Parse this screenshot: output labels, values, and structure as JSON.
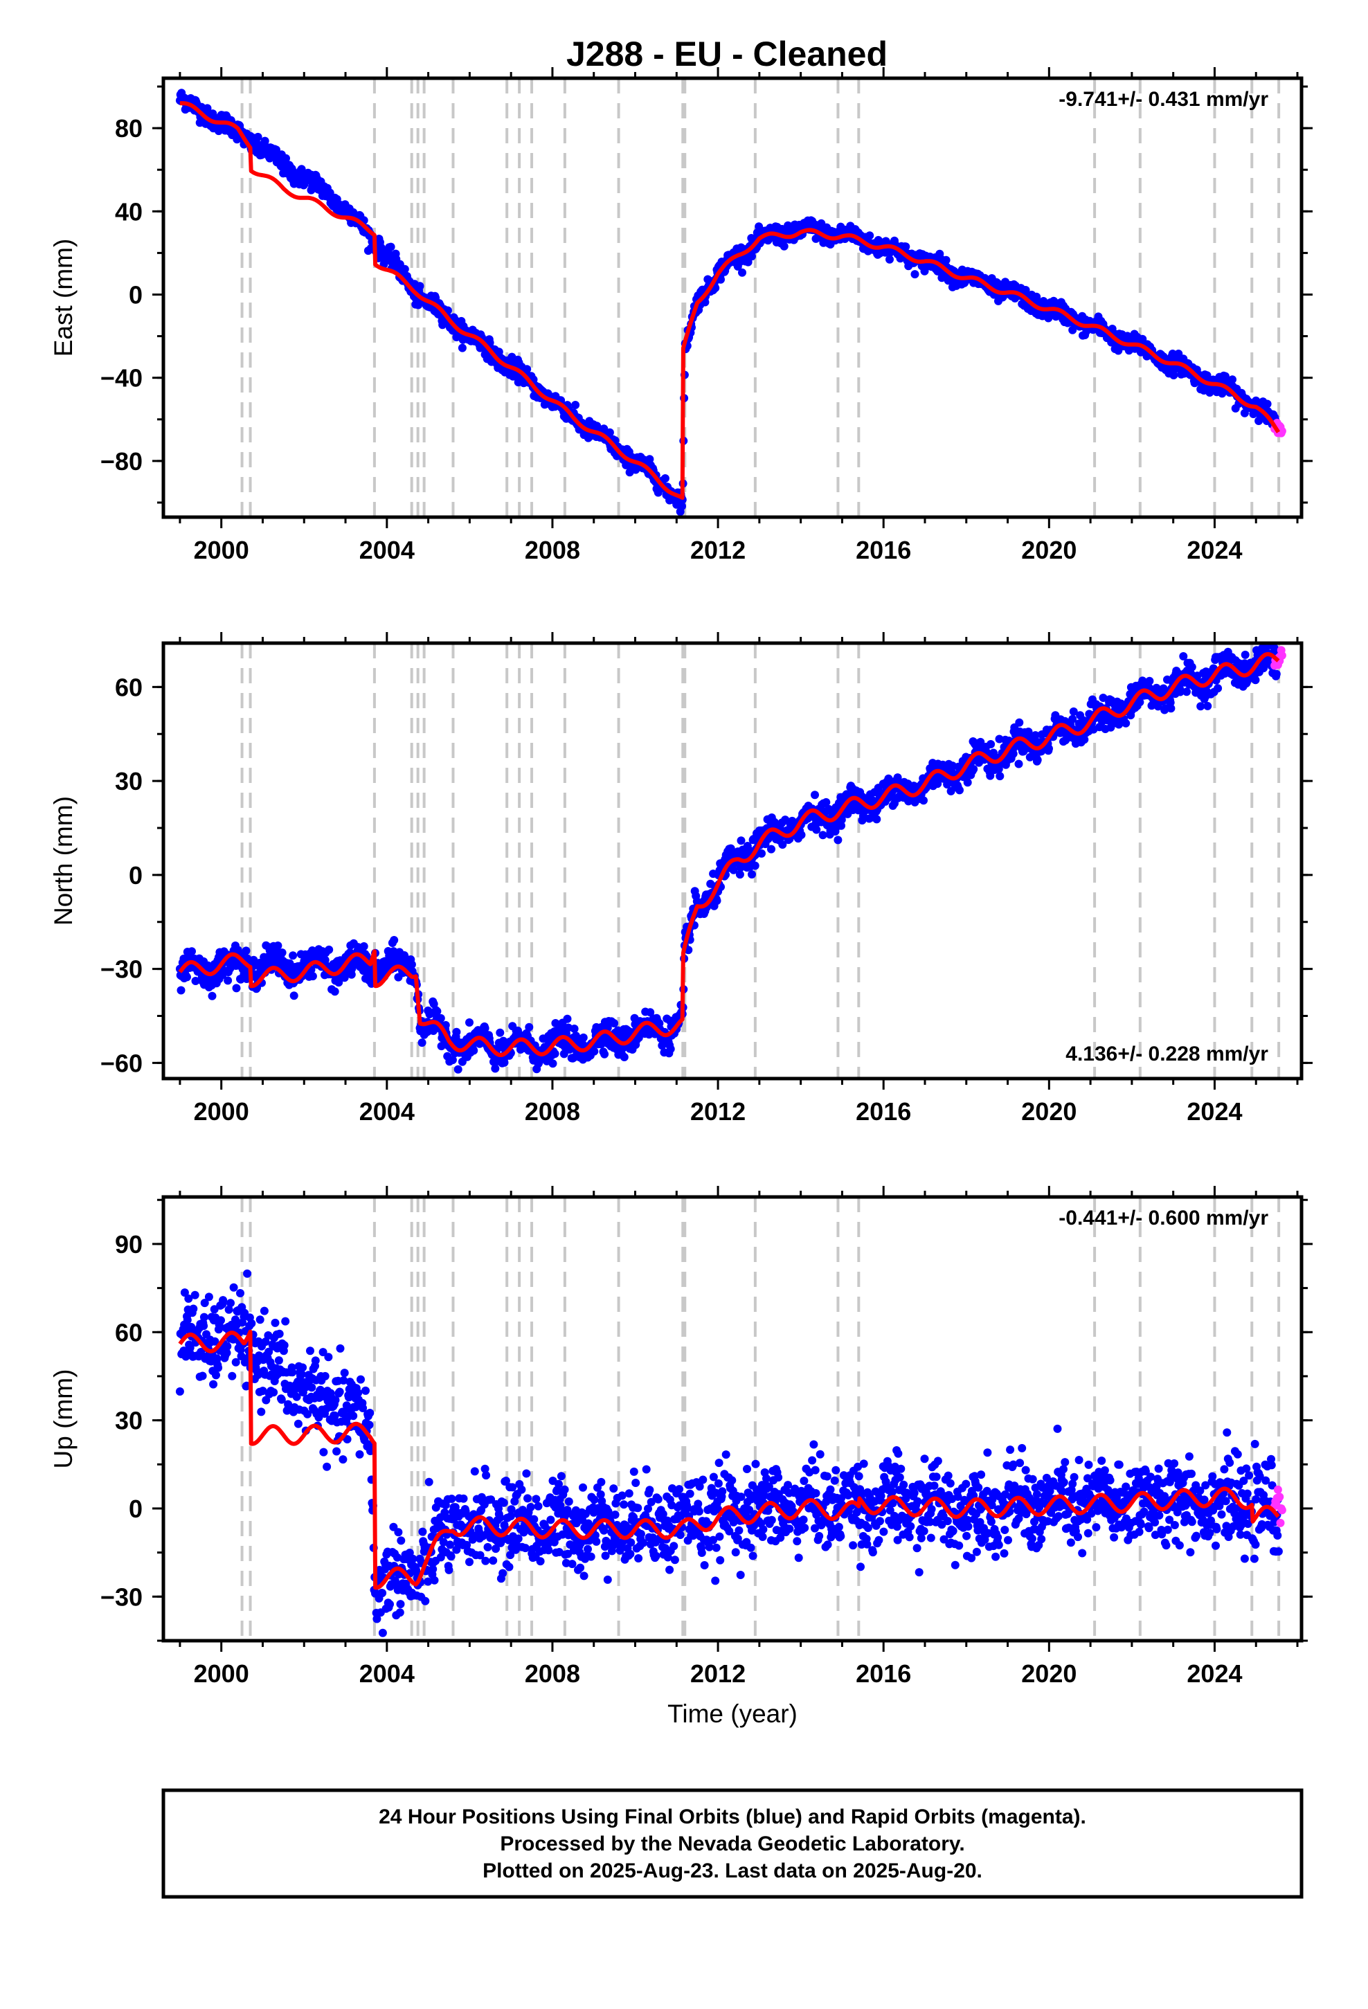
{
  "title": "J288  - EU - Cleaned",
  "footer": {
    "line1": "24 Hour Positions Using Final Orbits (blue) and Rapid Orbits (magenta).",
    "line2": "Processed by the Nevada Geodetic Laboratory.",
    "line3": "Plotted on 2025-Aug-23. Last data on 2025-Aug-20."
  },
  "colors": {
    "final_orbits": "#0000ff",
    "rapid_orbits": "#ff33ff",
    "model": "#ff0000",
    "event_lines": "#c8c8c8"
  },
  "chart_data": [
    {
      "type": "scatter",
      "ylabel": "East (mm)",
      "xlabel": "",
      "xlim": [
        1998.6,
        2026.1
      ],
      "ylim": [
        -107,
        104
      ],
      "xticks": [
        "2000",
        "2004",
        "2008",
        "2012",
        "2016",
        "2020",
        "2024"
      ],
      "yticks": [
        "-80",
        "-40",
        "0",
        "40",
        "80"
      ],
      "rate_text": "-9.741+/- 0.431 mm/yr",
      "rate_position": "top-right",
      "events": [
        2000.5,
        2000.7,
        2003.7,
        2004.6,
        2004.75,
        2004.9,
        2005.6,
        2006.9,
        2007.2,
        2007.5,
        2008.3,
        2009.6,
        2011.15,
        2011.2,
        2012.9,
        2014.9,
        2015.4,
        2021.1,
        2022.2,
        2024.0,
        2024.9,
        2025.55
      ],
      "series": [
        {
          "name": "Final Orbits",
          "color": "#0000ff",
          "noise": 2.2,
          "seasonal": 1.5,
          "x": [
            1999.0,
            1999.5,
            2000.0,
            2000.7,
            2001.5,
            2002.5,
            2003.0,
            2003.7,
            2004.7,
            2005.5,
            2006.5,
            2007.5,
            2008.5,
            2009.5,
            2010.5,
            2011.15,
            2011.2,
            2011.5,
            2012.0,
            2012.5,
            2013.0,
            2014.0,
            2015.0,
            2016.0,
            2017.0,
            2018.0,
            2019.0,
            2020.0,
            2021.0,
            2022.0,
            2023.0,
            2024.0,
            2025.0,
            2025.5
          ],
          "y": [
            94,
            88,
            83,
            74,
            62,
            50,
            41,
            26,
            1,
            -12,
            -27,
            -43,
            -59,
            -73,
            -88,
            -100,
            -28,
            -3,
            10,
            19,
            26,
            31,
            29,
            23,
            16,
            8,
            1,
            -7,
            -15,
            -24,
            -33,
            -43,
            -53,
            -64
          ]
        },
        {
          "name": "Rapid Orbits",
          "color": "#ff33ff",
          "noise": 1.5,
          "seasonal": 0,
          "x": [
            2025.45,
            2025.63
          ],
          "y": [
            -63,
            -67
          ]
        },
        {
          "name": "Model",
          "color": "#ff0000",
          "type": "line",
          "seasonal": 1.5,
          "x": [
            1999.0,
            2000.4,
            2000.7,
            2000.71,
            2001.5,
            2002.5,
            2003.7,
            2003.71,
            2004.7,
            2005.5,
            2006.5,
            2007.5,
            2008.5,
            2009.5,
            2010.5,
            2011.15,
            2011.16,
            2011.5,
            2012.0,
            2012.5,
            2013.0,
            2014.0,
            2015.0,
            2016.0,
            2017.0,
            2018.0,
            2019.0,
            2020.0,
            2021.0,
            2022.0,
            2023.0,
            2024.0,
            2025.0,
            2025.55
          ],
          "y": [
            92,
            79,
            72,
            61,
            51,
            42,
            30,
            16,
            2,
            -12,
            -27,
            -43,
            -59,
            -73,
            -88,
            -99,
            -27,
            -4,
            10,
            19,
            27,
            30,
            28,
            23,
            16,
            8,
            1,
            -7,
            -15,
            -24,
            -33,
            -43,
            -54,
            -66
          ]
        }
      ]
    },
    {
      "type": "scatter",
      "ylabel": "North (mm)",
      "xlabel": "",
      "xlim": [
        1998.6,
        2026.1
      ],
      "ylim": [
        -65,
        74
      ],
      "xticks": [
        "2000",
        "2004",
        "2008",
        "2012",
        "2016",
        "2020",
        "2024"
      ],
      "yticks": [
        "-60",
        "-30",
        "0",
        "30",
        "60"
      ],
      "rate_text": "4.136+/- 0.228 mm/yr",
      "rate_position": "bottom-right",
      "events": [
        2000.5,
        2000.7,
        2003.7,
        2004.6,
        2004.75,
        2004.9,
        2005.6,
        2006.9,
        2007.2,
        2007.5,
        2008.3,
        2009.6,
        2011.15,
        2011.2,
        2012.9,
        2014.9,
        2015.4,
        2021.1,
        2022.2,
        2024.0,
        2024.9,
        2025.55
      ],
      "series": [
        {
          "name": "Final Orbits",
          "color": "#0000ff",
          "noise": 2.4,
          "seasonal": 2.5,
          "x": [
            1999.0,
            2000.0,
            2001.0,
            2002.0,
            2003.0,
            2004.0,
            2004.7,
            2004.8,
            2005.5,
            2006.5,
            2007.5,
            2008.5,
            2009.5,
            2010.5,
            2011.15,
            2011.2,
            2011.5,
            2012.0,
            2012.5,
            2013.0,
            2014.0,
            2015.0,
            2016.0,
            2017.0,
            2018.0,
            2019.0,
            2020.0,
            2021.0,
            2022.0,
            2023.0,
            2024.0,
            2025.0,
            2025.5
          ],
          "y": [
            -31,
            -29,
            -29,
            -29,
            -29,
            -29,
            -30,
            -45,
            -53,
            -55,
            -55,
            -54,
            -52,
            -49,
            -48,
            -25,
            -10,
            -3,
            5,
            10,
            17,
            21,
            25,
            29,
            35,
            40,
            44,
            49,
            55,
            60,
            64,
            67,
            68
          ]
        },
        {
          "name": "Rapid Orbits",
          "color": "#ff33ff",
          "noise": 1.2,
          "seasonal": 0,
          "x": [
            2025.45,
            2025.63
          ],
          "y": [
            67,
            70
          ]
        },
        {
          "name": "Model",
          "color": "#ff0000",
          "type": "line",
          "seasonal": 2.5,
          "x": [
            1999.0,
            2000.6,
            2000.7,
            2000.71,
            2002.0,
            2003.6,
            2003.7,
            2003.71,
            2004.6,
            2004.7,
            2004.8,
            2005.5,
            2006.5,
            2007.5,
            2008.5,
            2009.5,
            2010.5,
            2011.15,
            2011.16,
            2011.5,
            2012.0,
            2012.5,
            2013.0,
            2014.0,
            2015.0,
            2016.0,
            2017.0,
            2018.0,
            2019.0,
            2020.0,
            2021.0,
            2022.0,
            2023.0,
            2024.0,
            2025.0,
            2025.55
          ],
          "y": [
            -31,
            -27,
            -27,
            -33,
            -31,
            -27,
            -22,
            -33,
            -31,
            -30,
            -45,
            -53,
            -55,
            -55,
            -54,
            -52,
            -49,
            -48,
            -27,
            -10,
            -3,
            5,
            10,
            17,
            21,
            25,
            29,
            35,
            40,
            44,
            49,
            55,
            60,
            64,
            67,
            69
          ]
        }
      ]
    },
    {
      "type": "scatter",
      "ylabel": "Up (mm)",
      "xlabel": "Time (year)",
      "xlim": [
        1998.6,
        2026.1
      ],
      "ylim": [
        -45,
        106
      ],
      "xticks": [
        "2000",
        "2004",
        "2008",
        "2012",
        "2016",
        "2020",
        "2024"
      ],
      "yticks": [
        "-30",
        "0",
        "30",
        "60",
        "90"
      ],
      "rate_text": "-0.441+/- 0.600 mm/yr",
      "rate_position": "top-right",
      "events": [
        2000.5,
        2000.7,
        2003.7,
        2004.6,
        2004.75,
        2004.9,
        2005.6,
        2006.9,
        2007.2,
        2007.5,
        2008.3,
        2009.6,
        2011.15,
        2011.2,
        2012.9,
        2014.9,
        2015.4,
        2021.1,
        2022.2,
        2024.0,
        2024.9,
        2025.55
      ],
      "series": [
        {
          "name": "Final Orbits",
          "color": "#0000ff",
          "noise": 7,
          "seasonal": 3,
          "x": [
            1999.0,
            2000.6,
            2000.71,
            2002.0,
            2003.6,
            2003.71,
            2004.7,
            2005.5,
            2006.5,
            2008.0,
            2010.0,
            2011.2,
            2012.0,
            2014.0,
            2016.0,
            2018.0,
            2020.0,
            2022.0,
            2024.0,
            2025.0,
            2025.55
          ],
          "y": [
            57,
            58,
            54,
            40,
            28,
            -25,
            -22,
            -8,
            -5,
            -6,
            -5,
            -4,
            -2,
            1,
            1,
            0,
            1,
            2,
            3,
            0,
            -3
          ]
        },
        {
          "name": "Rapid Orbits",
          "color": "#ff33ff",
          "noise": 2,
          "seasonal": 0,
          "x": [
            2025.45,
            2025.63
          ],
          "y": [
            3,
            0
          ]
        },
        {
          "name": "Model",
          "color": "#ff0000",
          "type": "line",
          "seasonal": 3,
          "x": [
            1999.0,
            2000.55,
            2000.7,
            2000.71,
            2002.0,
            2003.6,
            2003.7,
            2003.71,
            2004.7,
            2004.75,
            2004.9,
            2005.6,
            2006.5,
            2008.0,
            2010.0,
            2011.2,
            2012.0,
            2014.0,
            2015.4,
            2015.41,
            2016.0,
            2018.0,
            2020.0,
            2022.0,
            2024.0,
            2024.9,
            2024.91,
            2025.55
          ],
          "y": [
            56,
            57,
            63,
            25,
            25,
            26,
            25,
            -24,
            -23,
            -22,
            -18,
            -6,
            -6,
            -7,
            -7,
            -7,
            -3,
            0,
            -1,
            2,
            1,
            0,
            1,
            2,
            4,
            3,
            -3,
            -2
          ]
        }
      ]
    }
  ]
}
